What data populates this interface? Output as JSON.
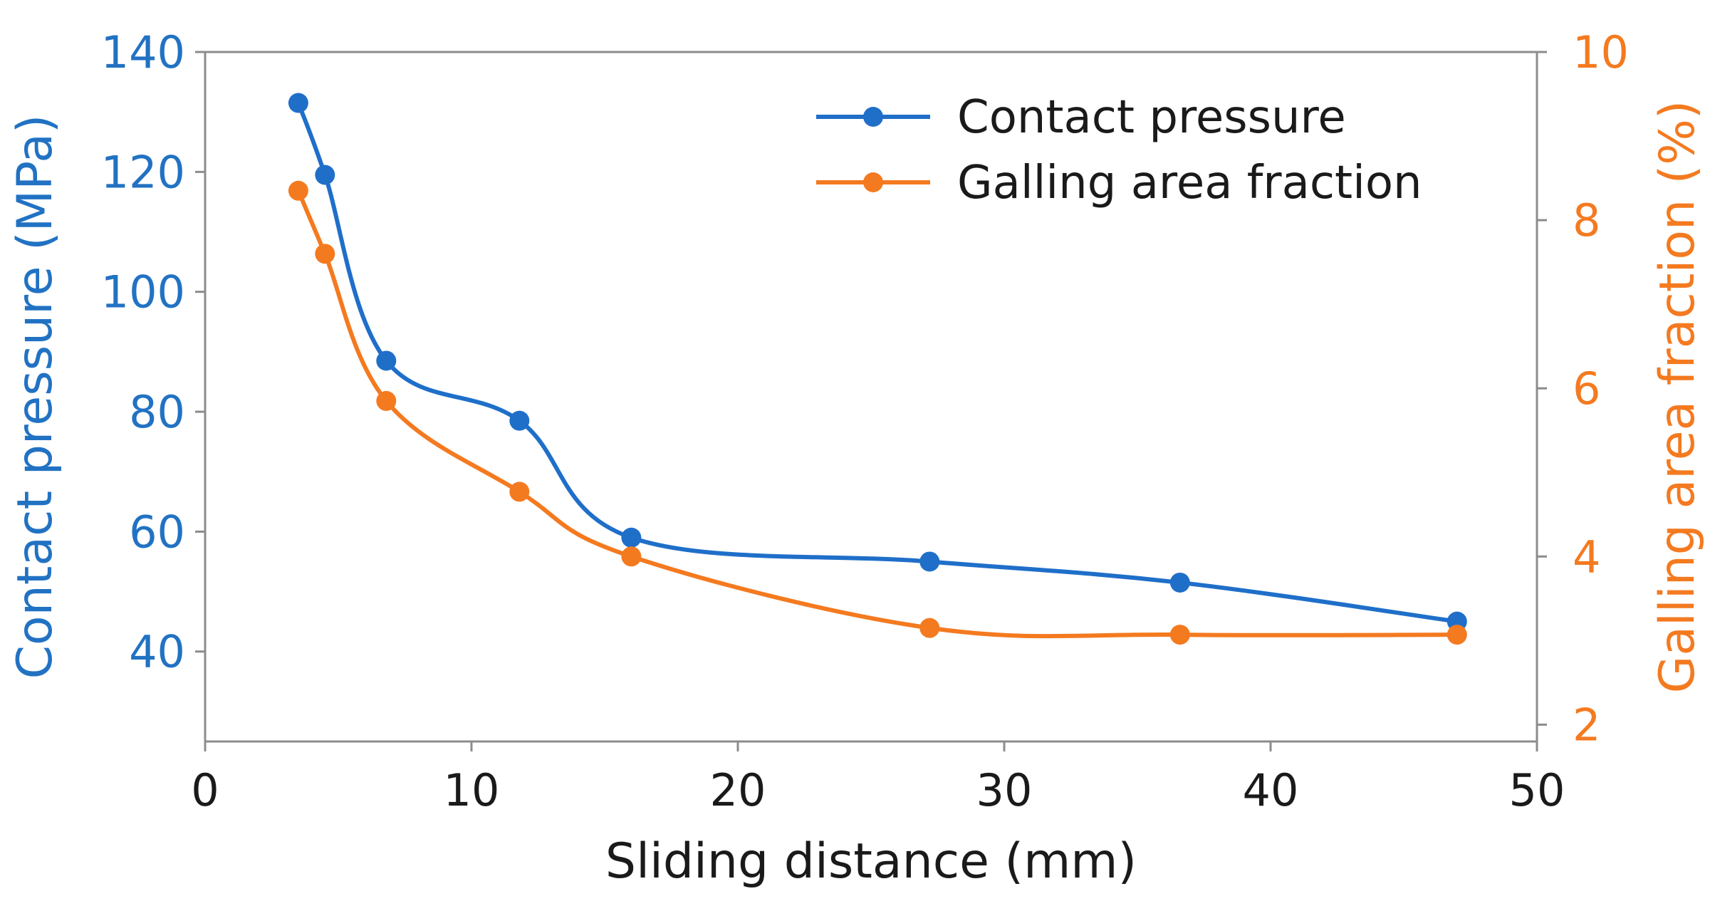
{
  "chart_data": {
    "type": "line",
    "title": "",
    "xlabel": "Sliding distance (mm)",
    "ylabel": "Contact pressure (MPa)",
    "y2label": "Galling area fraction (%)",
    "xlim": [
      0,
      50
    ],
    "ylim": [
      25,
      140
    ],
    "y2lim": [
      1.8,
      10
    ],
    "x_ticks": [
      0,
      10,
      20,
      30,
      40,
      50
    ],
    "y_ticks": [
      40,
      60,
      80,
      100,
      120,
      140
    ],
    "y2_ticks": [
      2,
      4,
      6,
      8,
      10
    ],
    "grid": false,
    "legend_position": "top-right",
    "colors": {
      "left_axis": "#2272c3",
      "right_axis": "#f47a20",
      "frame": "#8c8c8c",
      "text": "#1a1a1a"
    },
    "series": [
      {
        "name": "Contact pressure",
        "axis": "left",
        "color": "#1f6fc9",
        "x": [
          3.5,
          4.5,
          6.8,
          11.8,
          16.0,
          27.2,
          36.6,
          47.0
        ],
        "y": [
          131.5,
          119.5,
          88.5,
          78.5,
          59.0,
          55.0,
          51.5,
          45.0
        ]
      },
      {
        "name": "Galling area fraction",
        "axis": "right",
        "color": "#f47a20",
        "x": [
          3.5,
          4.5,
          6.8,
          11.8,
          16.0,
          27.2,
          36.6,
          47.0
        ],
        "y": [
          8.35,
          7.6,
          5.85,
          4.77,
          4.0,
          3.15,
          3.07,
          3.07
        ]
      }
    ]
  }
}
